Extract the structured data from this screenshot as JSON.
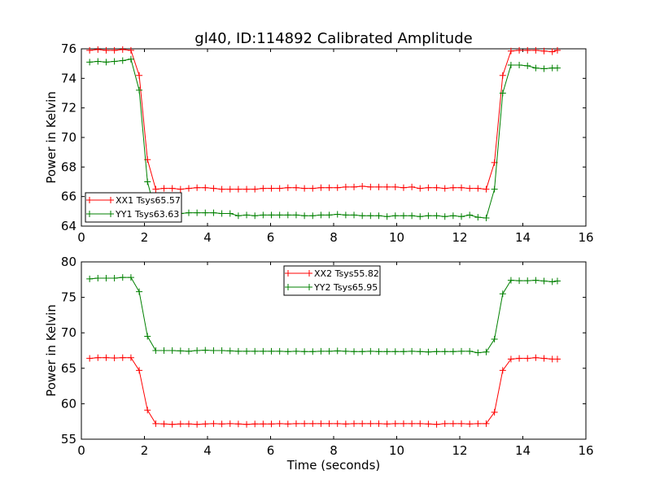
{
  "figure_title": "gl40, ID:114892 Calibrated Amplitude",
  "colors": {
    "red": "#ff0000",
    "green": "#008000",
    "axes": "#000000",
    "background": "#ffffff"
  },
  "chart_data": [
    {
      "type": "line",
      "title": "gl40, ID:114892 Calibrated Amplitude",
      "xlabel": "",
      "ylabel": "Power in Kelvin",
      "xlim": [
        0,
        16
      ],
      "ylim": [
        64,
        76
      ],
      "xticks": [
        0,
        2,
        4,
        6,
        8,
        10,
        12,
        14,
        16
      ],
      "yticks": [
        64,
        66,
        68,
        70,
        72,
        74,
        76
      ],
      "legend_position": "lower-left",
      "marker": "+",
      "x": [
        0.262,
        0.524,
        0.786,
        1.048,
        1.31,
        1.572,
        1.834,
        2.096,
        2.358,
        2.62,
        2.882,
        3.144,
        3.406,
        3.668,
        3.93,
        4.192,
        4.454,
        4.716,
        4.978,
        5.24,
        5.502,
        5.764,
        6.026,
        6.288,
        6.55,
        6.812,
        7.074,
        7.336,
        7.598,
        7.86,
        8.122,
        8.384,
        8.646,
        8.908,
        9.17,
        9.432,
        9.694,
        9.956,
        10.218,
        10.48,
        10.742,
        11.004,
        11.266,
        11.528,
        11.79,
        12.052,
        12.314,
        12.576,
        12.838,
        13.1,
        13.362,
        13.624,
        13.886,
        14.148,
        14.41,
        14.672,
        14.934,
        15.096
      ],
      "series": [
        {
          "name": "XX1 Tsys65.57",
          "color": "#ff0000",
          "values": [
            75.9,
            75.95,
            75.9,
            75.9,
            75.95,
            75.9,
            74.2,
            68.5,
            66.5,
            66.55,
            66.55,
            66.5,
            66.55,
            66.6,
            66.6,
            66.55,
            66.5,
            66.5,
            66.5,
            66.5,
            66.5,
            66.55,
            66.55,
            66.55,
            66.6,
            66.6,
            66.55,
            66.55,
            66.6,
            66.6,
            66.6,
            66.65,
            66.65,
            66.7,
            66.65,
            66.65,
            66.65,
            66.65,
            66.6,
            66.65,
            66.55,
            66.6,
            66.6,
            66.55,
            66.6,
            66.6,
            66.55,
            66.55,
            66.5,
            68.3,
            74.2,
            75.85,
            75.9,
            75.9,
            75.9,
            75.85,
            75.8,
            75.9
          ]
        },
        {
          "name": "YY1 Tsys63.63",
          "color": "#008000",
          "values": [
            75.1,
            75.15,
            75.1,
            75.15,
            75.2,
            75.3,
            73.2,
            67.0,
            64.9,
            64.85,
            64.9,
            64.85,
            64.9,
            64.9,
            64.9,
            64.9,
            64.85,
            64.85,
            64.7,
            64.75,
            64.7,
            64.75,
            64.75,
            64.75,
            64.75,
            64.75,
            64.7,
            64.7,
            64.75,
            64.75,
            64.8,
            64.75,
            64.75,
            64.7,
            64.7,
            64.7,
            64.65,
            64.7,
            64.7,
            64.7,
            64.65,
            64.7,
            64.7,
            64.65,
            64.7,
            64.65,
            64.75,
            64.6,
            64.55,
            66.5,
            73.0,
            74.9,
            74.9,
            74.85,
            74.7,
            74.65,
            74.7,
            74.7
          ]
        }
      ]
    },
    {
      "type": "line",
      "title": "",
      "xlabel": "Time (seconds)",
      "ylabel": "Power in Kelvin",
      "xlim": [
        0,
        16
      ],
      "ylim": [
        55,
        80
      ],
      "xticks": [
        0,
        2,
        4,
        6,
        8,
        10,
        12,
        14,
        16
      ],
      "yticks": [
        55,
        60,
        65,
        70,
        75,
        80
      ],
      "legend_position": "upper-center",
      "marker": "+",
      "x": [
        0.262,
        0.524,
        0.786,
        1.048,
        1.31,
        1.572,
        1.834,
        2.096,
        2.358,
        2.62,
        2.882,
        3.144,
        3.406,
        3.668,
        3.93,
        4.192,
        4.454,
        4.716,
        4.978,
        5.24,
        5.502,
        5.764,
        6.026,
        6.288,
        6.55,
        6.812,
        7.074,
        7.336,
        7.598,
        7.86,
        8.122,
        8.384,
        8.646,
        8.908,
        9.17,
        9.432,
        9.694,
        9.956,
        10.218,
        10.48,
        10.742,
        11.004,
        11.266,
        11.528,
        11.79,
        12.052,
        12.314,
        12.576,
        12.838,
        13.1,
        13.362,
        13.624,
        13.886,
        14.148,
        14.41,
        14.672,
        14.934,
        15.096
      ],
      "series": [
        {
          "name": "XX2 Tsys55.82",
          "color": "#ff0000",
          "values": [
            66.4,
            66.5,
            66.5,
            66.45,
            66.5,
            66.5,
            64.7,
            59.1,
            57.2,
            57.15,
            57.1,
            57.15,
            57.15,
            57.1,
            57.15,
            57.2,
            57.15,
            57.2,
            57.15,
            57.1,
            57.15,
            57.15,
            57.15,
            57.2,
            57.15,
            57.2,
            57.2,
            57.2,
            57.2,
            57.2,
            57.2,
            57.15,
            57.2,
            57.2,
            57.2,
            57.2,
            57.15,
            57.2,
            57.2,
            57.2,
            57.2,
            57.15,
            57.1,
            57.2,
            57.2,
            57.2,
            57.15,
            57.2,
            57.2,
            58.8,
            64.7,
            66.3,
            66.4,
            66.4,
            66.5,
            66.4,
            66.3,
            66.3
          ]
        },
        {
          "name": "YY2 Tsys65.95",
          "color": "#008000",
          "values": [
            77.6,
            77.7,
            77.7,
            77.7,
            77.8,
            77.8,
            75.8,
            69.5,
            67.5,
            67.5,
            67.5,
            67.45,
            67.4,
            67.5,
            67.55,
            67.5,
            67.5,
            67.45,
            67.4,
            67.4,
            67.4,
            67.4,
            67.4,
            67.4,
            67.35,
            67.4,
            67.35,
            67.35,
            67.4,
            67.4,
            67.45,
            67.4,
            67.35,
            67.35,
            67.4,
            67.35,
            67.35,
            67.35,
            67.35,
            67.4,
            67.35,
            67.3,
            67.35,
            67.35,
            67.35,
            67.4,
            67.4,
            67.2,
            67.3,
            69.1,
            75.5,
            77.4,
            77.35,
            77.35,
            77.4,
            77.3,
            77.2,
            77.3
          ]
        }
      ]
    }
  ]
}
